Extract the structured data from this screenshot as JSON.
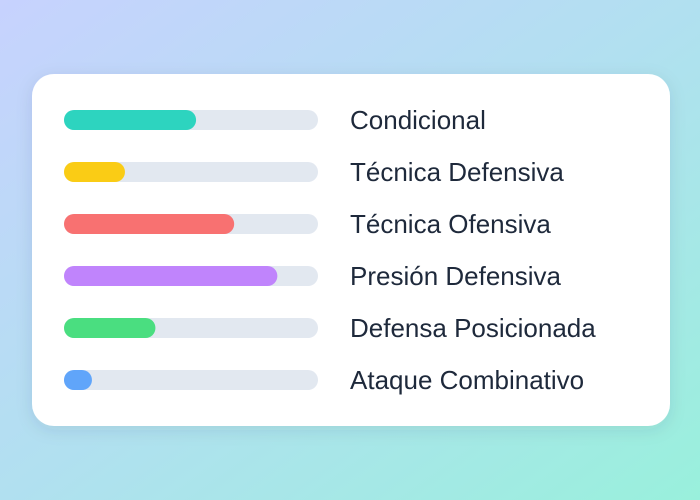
{
  "chart_data": {
    "type": "bar",
    "orientation": "horizontal",
    "categories": [
      "Condicional",
      "Técnica Defensiva",
      "Técnica Ofensiva",
      "Presión Defensiva",
      "Defensa Posicionada",
      "Ataque Combinativo"
    ],
    "values": [
      52,
      24,
      67,
      84,
      36,
      11
    ],
    "colors": [
      "#2dd4bf",
      "#facc15",
      "#f87171",
      "#c084fc",
      "#4ade80",
      "#60a5fa"
    ],
    "xlim": [
      0,
      100
    ]
  }
}
